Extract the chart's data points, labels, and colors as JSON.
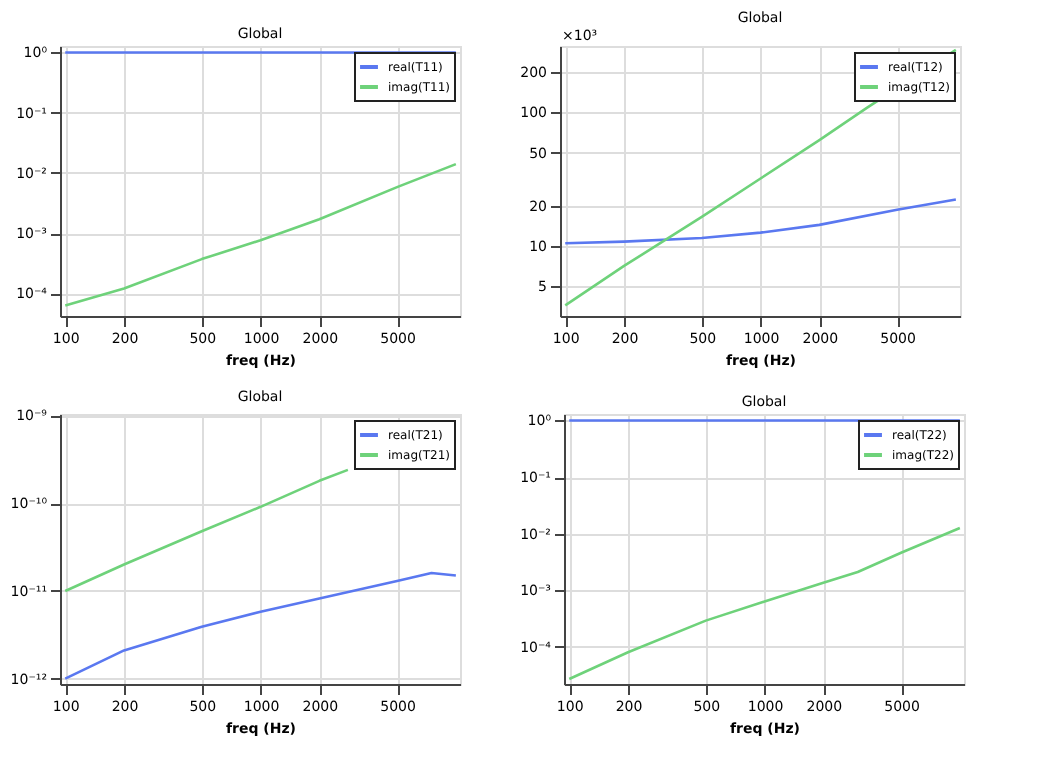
{
  "chart_data": [
    {
      "type": "line",
      "title": "Global",
      "xlabel": "freq (Hz)",
      "log": "xy",
      "grid": true,
      "legend": "top right",
      "xlim": [
        94,
        10500
      ],
      "xticks": [
        100,
        200,
        500,
        1000,
        2000,
        5000
      ],
      "ylim": [
        4.2e-05,
        1.28
      ],
      "yticks": [
        {
          "value": 1,
          "label": "10⁰"
        },
        {
          "value": 0.1,
          "label": "10⁻¹"
        },
        {
          "value": 0.01,
          "label": "10⁻²"
        },
        {
          "value": 0.001,
          "label": "10⁻³"
        },
        {
          "value": 0.0001,
          "label": "10⁻⁴"
        }
      ],
      "series": [
        {
          "name": "real(T11)",
          "color": "#5a78f0",
          "x": [
            100,
            200,
            500,
            1000,
            2000,
            5000,
            10000
          ],
          "values": [
            1,
            1,
            1,
            1,
            1,
            1,
            1
          ]
        },
        {
          "name": "imag(T11)",
          "color": "#6ed27a",
          "x": [
            100,
            200,
            500,
            1000,
            2000,
            5000,
            10000
          ],
          "values": [
            6.3e-05,
            0.00012,
            0.00037,
            0.00076,
            0.0017,
            0.0058,
            0.014
          ]
        }
      ]
    },
    {
      "type": "line",
      "title": "Global",
      "xlabel": "freq (Hz)",
      "log": "xy",
      "grid": true,
      "legend": "top right",
      "annotations": [
        "×10³"
      ],
      "xlim": [
        94,
        10500
      ],
      "xticks": [
        100,
        200,
        500,
        1000,
        2000,
        5000
      ],
      "ylim": [
        3.0,
        313
      ],
      "yticks": [
        5,
        10,
        20,
        50,
        100,
        200
      ],
      "series": [
        {
          "name": "real(T12)",
          "color": "#5a78f0",
          "x": [
            100,
            200,
            500,
            1000,
            2000,
            5000,
            10000
          ],
          "values": [
            10.5,
            10.8,
            11.5,
            12.6,
            14.4,
            18.7,
            22.3
          ]
        },
        {
          "name": "imag(T12)",
          "color": "#6ed27a",
          "x": [
            100,
            200,
            500,
            1000,
            2000,
            3500,
            10000
          ],
          "values": [
            3.6,
            7.1,
            16.5,
            32,
            62,
            108,
            293
          ]
        }
      ]
    },
    {
      "type": "line",
      "title": "Global",
      "xlabel": "freq (Hz)",
      "log": "xy",
      "grid": true,
      "legend": "top right",
      "xlim": [
        94,
        10500
      ],
      "xticks": [
        100,
        200,
        500,
        1000,
        2000,
        5000
      ],
      "ylim": [
        8.7e-13,
        1.04e-09
      ],
      "yticks": [
        {
          "value": 1e-09,
          "label": "10⁻⁹"
        },
        {
          "value": 1e-10,
          "label": "10⁻¹⁰"
        },
        {
          "value": 1e-11,
          "label": "10⁻¹¹"
        },
        {
          "value": 1e-12,
          "label": "10⁻¹²"
        }
      ],
      "series": [
        {
          "name": "real(T21)",
          "color": "#5a78f0",
          "x": [
            100,
            200,
            500,
            1000,
            2000,
            5000,
            7500,
            10000
          ],
          "values": [
            1e-12,
            2.1e-12,
            3.9e-12,
            5.8e-12,
            8.2e-12,
            1.3e-11,
            1.6e-11,
            1.5e-11
          ]
        },
        {
          "name": "imag(T21)",
          "color": "#6ed27a",
          "x": [
            100,
            200,
            500,
            1000,
            2000,
            2800
          ],
          "values": [
            1e-11,
            2e-11,
            4.8e-11,
            9.1e-11,
            1.8e-10,
            2.4e-10
          ]
        }
      ]
    },
    {
      "type": "line",
      "title": "Global",
      "xlabel": "freq (Hz)",
      "log": "xy",
      "grid": true,
      "legend": "top right",
      "xlim": [
        94,
        10500
      ],
      "xticks": [
        100,
        200,
        500,
        1000,
        2000,
        5000
      ],
      "ylim": [
        2.2e-05,
        1.3
      ],
      "yticks": [
        {
          "value": 1,
          "label": "10⁰"
        },
        {
          "value": 0.1,
          "label": "10⁻¹"
        },
        {
          "value": 0.01,
          "label": "10⁻²"
        },
        {
          "value": 0.001,
          "label": "10⁻³"
        },
        {
          "value": 0.0001,
          "label": "10⁻⁴"
        }
      ],
      "series": [
        {
          "name": "real(T22)",
          "color": "#5a78f0",
          "x": [
            100,
            200,
            500,
            1000,
            2000,
            5000,
            10000
          ],
          "values": [
            1,
            1,
            1,
            1,
            1,
            1,
            1
          ]
        },
        {
          "name": "imag(T22)",
          "color": "#6ed27a",
          "x": [
            100,
            200,
            500,
            1000,
            2000,
            3000,
            5000,
            10000
          ],
          "values": [
            2.7e-05,
            8e-05,
            0.00029,
            0.00063,
            0.00135,
            0.0021,
            0.0046,
            0.0126
          ]
        }
      ]
    }
  ]
}
